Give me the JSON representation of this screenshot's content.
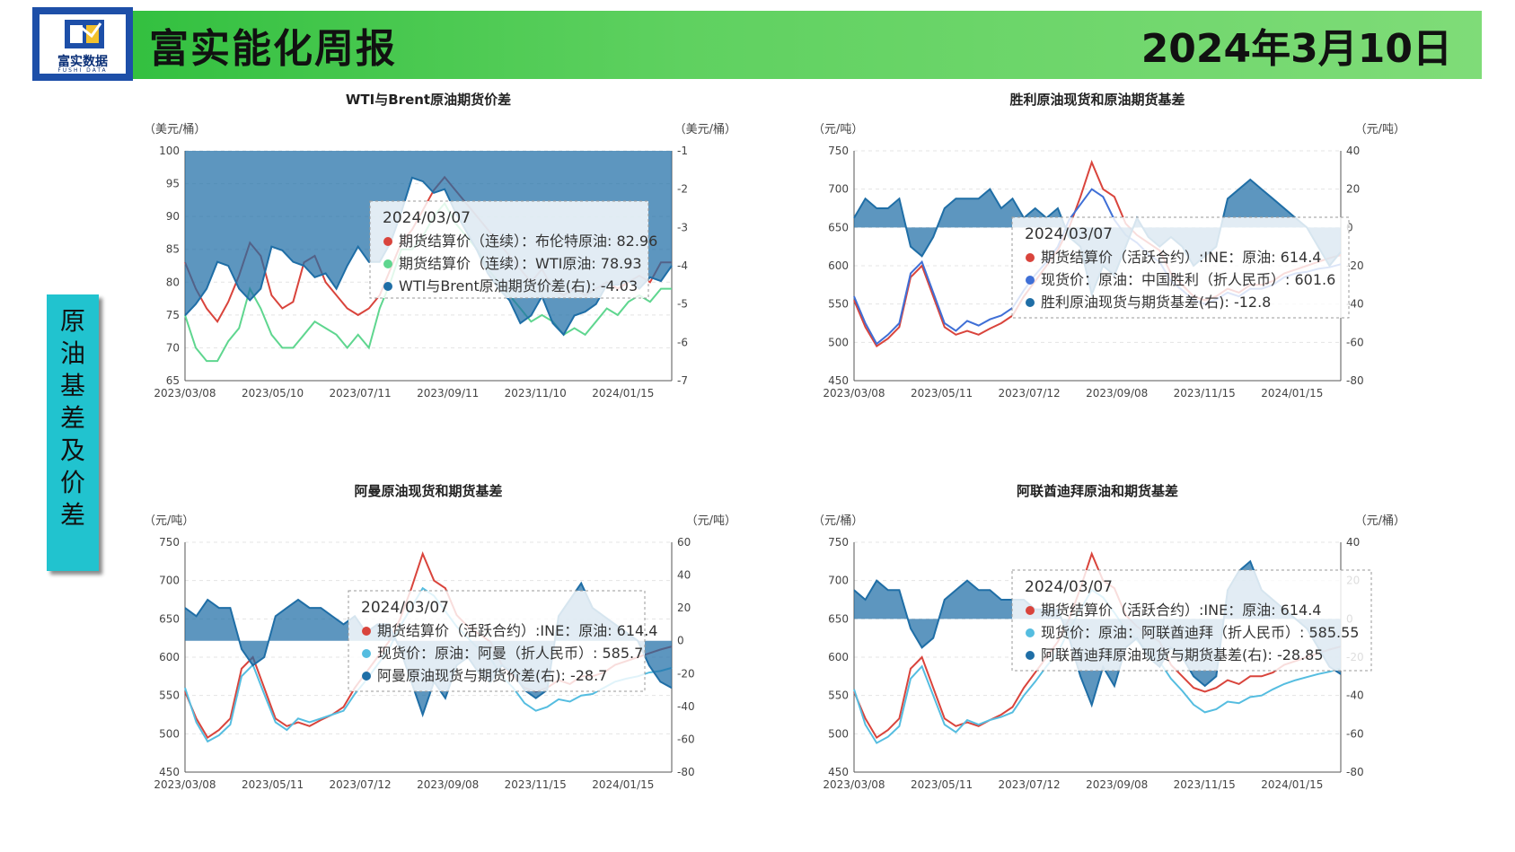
{
  "header": {
    "logo_text": "富实数据",
    "logo_sub": "FUSHI DATA",
    "title": "富实能化周报",
    "date": "2024年3月10日"
  },
  "sidebar": {
    "label": "原油基差及价差"
  },
  "colors": {
    "red": "#d9443c",
    "green": "#5fd68f",
    "dark_blue": "#1f6ea6",
    "area": "#1f6ea6",
    "blue": "#3f6fd6",
    "light_blue": "#55bde0"
  },
  "chart_data": [
    {
      "type": "line",
      "title": "WTI与Brent原油期货价差",
      "left_unit": "（美元/桶）",
      "right_unit": "（美元/桶）",
      "left_ylim": [
        65,
        100
      ],
      "left_ticks": [
        "100",
        "95",
        "90",
        "85",
        "80",
        "75",
        "70",
        "65"
      ],
      "right_ylim": [
        -7,
        -1
      ],
      "right_ticks": [
        "-1",
        "-2",
        "-3",
        "-4",
        "-5",
        "-6",
        "-7"
      ],
      "x_ticks": [
        "2023/03/08",
        "2023/05/10",
        "2023/07/11",
        "2023/09/11",
        "2023/11/10",
        "2024/01/15"
      ],
      "series": [
        {
          "name": "期货结算价（连续）：布伦特原油",
          "axis": "left",
          "color": "red",
          "values": [
            83,
            79,
            76,
            74,
            77,
            81,
            86,
            84,
            78,
            76,
            77,
            83,
            84,
            80,
            78,
            76,
            75,
            76,
            78,
            82,
            86,
            88,
            91,
            94,
            96,
            94,
            92,
            90,
            88,
            86,
            84,
            82,
            80,
            82,
            79,
            78,
            79,
            78,
            79,
            80,
            79,
            80,
            81,
            80,
            83,
            83
          ]
        },
        {
          "name": "期货结算价（连续）：WTI原油",
          "axis": "left",
          "color": "green",
          "values": [
            75,
            70,
            68,
            68,
            71,
            73,
            79,
            76,
            72,
            70,
            70,
            72,
            74,
            73,
            72,
            70,
            72,
            70,
            76,
            80,
            85,
            85,
            87,
            90,
            92,
            89,
            87,
            85,
            82,
            80,
            78,
            76,
            74,
            75,
            74,
            72,
            73,
            72,
            74,
            76,
            75,
            77,
            78,
            77,
            79,
            79
          ]
        },
        {
          "name": "WTI与Brent原油期货价差(右)",
          "axis": "right",
          "color": "area",
          "values": [
            -5.3,
            -5.0,
            -4.6,
            -3.9,
            -4.0,
            -4.6,
            -4.9,
            -4.6,
            -3.5,
            -3.6,
            -3.9,
            -4.0,
            -4.3,
            -4.2,
            -4.6,
            -4.0,
            -3.5,
            -3.9,
            -3.9,
            -3.4,
            -2.6,
            -1.7,
            -1.8,
            -2.1,
            -2.0,
            -2.6,
            -3.1,
            -3.6,
            -4.2,
            -4.6,
            -4.9,
            -5.5,
            -5.3,
            -4.8,
            -5.5,
            -5.8,
            -5.3,
            -5.2,
            -5.0,
            -4.5,
            -4.5,
            -4.4,
            -4.6,
            -4.3,
            -4.4,
            -4.0
          ]
        }
      ],
      "tooltip": {
        "date": "2024/03/07",
        "lines": [
          "期货结算价（连续）：布伦特原油: 82.96",
          "期货结算价（连续）：WTI原油: 78.93",
          "WTI与Brent原油期货价差(右): -4.03"
        ]
      }
    },
    {
      "type": "line",
      "title": "胜利原油现货和原油期货基差",
      "left_unit": "（元/吨）",
      "right_unit": "（元/吨）",
      "left_ylim": [
        450,
        750
      ],
      "left_ticks": [
        "750",
        "700",
        "650",
        "600",
        "550",
        "500",
        "450"
      ],
      "right_ylim": [
        -80,
        40
      ],
      "right_ticks": [
        "40",
        "20",
        "0",
        "-20",
        "-40",
        "-60",
        "-80"
      ],
      "x_ticks": [
        "2023/03/08",
        "2023/05/11",
        "2023/07/12",
        "2023/09/08",
        "2023/11/15",
        "2024/01/15"
      ],
      "series": [
        {
          "name": "期货结算价（活跃合约）:INE：原油",
          "axis": "left",
          "color": "red",
          "values": [
            555,
            520,
            495,
            505,
            520,
            585,
            600,
            560,
            520,
            510,
            515,
            510,
            518,
            525,
            535,
            560,
            580,
            600,
            620,
            650,
            690,
            735,
            700,
            690,
            655,
            640,
            630,
            620,
            590,
            575,
            560,
            555,
            560,
            570,
            565,
            575,
            575,
            580,
            590,
            595,
            600,
            605,
            610,
            614
          ]
        },
        {
          "name": "现货价：原油：中国胜利（折人民币）",
          "axis": "left",
          "color": "blue",
          "values": [
            560,
            525,
            498,
            510,
            525,
            590,
            605,
            565,
            525,
            515,
            528,
            522,
            530,
            535,
            545,
            568,
            588,
            605,
            625,
            660,
            680,
            700,
            690,
            660,
            640,
            630,
            615,
            605,
            580,
            568,
            555,
            550,
            556,
            565,
            560,
            570,
            570,
            575,
            585,
            590,
            592,
            596,
            598,
            602
          ]
        },
        {
          "name": "胜利原油现货与期货基差(右)",
          "axis": "right",
          "color": "area",
          "values": [
            5,
            15,
            10,
            10,
            15,
            -10,
            -15,
            -5,
            10,
            15,
            15,
            15,
            20,
            10,
            15,
            5,
            10,
            5,
            10,
            -5,
            -10,
            -35,
            -20,
            -25,
            -10,
            5,
            -5,
            -10,
            -5,
            -10,
            -20,
            -15,
            -10,
            15,
            20,
            25,
            20,
            15,
            10,
            5,
            0,
            -10,
            -20,
            -12.8
          ]
        }
      ],
      "tooltip": {
        "date": "2024/03/07",
        "lines": [
          "期货结算价（活跃合约）:INE：原油: 614.4",
          "现货价：原油：中国胜利（折人民币）: 601.6",
          "胜利原油现货与期货基差(右): -12.8"
        ]
      }
    },
    {
      "type": "line",
      "title": "阿曼原油现货和期货基差",
      "left_unit": "（元/吨）",
      "right_unit": "（元/吨）",
      "left_ylim": [
        450,
        750
      ],
      "left_ticks": [
        "750",
        "700",
        "650",
        "600",
        "550",
        "500",
        "450"
      ],
      "right_ylim": [
        -80,
        60
      ],
      "right_ticks": [
        "60",
        "40",
        "20",
        "0",
        "-20",
        "-40",
        "-60",
        "-80"
      ],
      "x_ticks": [
        "2023/03/08",
        "2023/05/11",
        "2023/07/12",
        "2023/09/08",
        "2023/11/15",
        "2024/01/15"
      ],
      "series": [
        {
          "name": "期货结算价（活跃合约）:INE：原油",
          "axis": "left",
          "color": "red",
          "values": [
            555,
            520,
            495,
            505,
            520,
            585,
            600,
            560,
            520,
            510,
            515,
            510,
            518,
            525,
            535,
            560,
            580,
            600,
            620,
            650,
            690,
            735,
            700,
            690,
            655,
            640,
            630,
            620,
            590,
            575,
            560,
            555,
            560,
            570,
            565,
            575,
            575,
            580,
            590,
            595,
            600,
            605,
            610,
            614
          ]
        },
        {
          "name": "现货价：原油：阿曼（折人民币）",
          "axis": "left",
          "color": "light_blue",
          "values": [
            560,
            515,
            490,
            498,
            512,
            575,
            590,
            552,
            515,
            505,
            520,
            515,
            520,
            525,
            530,
            552,
            570,
            590,
            610,
            640,
            665,
            690,
            680,
            660,
            640,
            625,
            610,
            598,
            575,
            560,
            540,
            530,
            535,
            545,
            542,
            550,
            552,
            560,
            568,
            572,
            575,
            580,
            582,
            586
          ]
        },
        {
          "name": "阿曼原油现货与期货价差(右)",
          "axis": "right",
          "color": "area",
          "values": [
            20,
            15,
            25,
            20,
            20,
            -5,
            -15,
            -10,
            15,
            20,
            25,
            20,
            20,
            15,
            10,
            15,
            5,
            10,
            10,
            -5,
            -25,
            -45,
            -25,
            -35,
            -15,
            -10,
            -20,
            -25,
            -15,
            -20,
            -30,
            -35,
            -30,
            15,
            25,
            35,
            20,
            15,
            10,
            5,
            0,
            -15,
            -25,
            -28.7
          ]
        }
      ],
      "tooltip": {
        "date": "2024/03/07",
        "lines": [
          "期货结算价（活跃合约）:INE：原油: 614.4",
          "现货价：原油：阿曼（折人民币）: 585.7",
          "阿曼原油现货与期货价差(右): -28.7"
        ]
      }
    },
    {
      "type": "line",
      "title": "阿联酋迪拜原油和期货基差",
      "left_unit": "（元/桶）",
      "right_unit": "（元/桶）",
      "left_ylim": [
        450,
        750
      ],
      "left_ticks": [
        "750",
        "700",
        "650",
        "600",
        "550",
        "500",
        "450"
      ],
      "right_ylim": [
        -80,
        40
      ],
      "right_ticks": [
        "40",
        "20",
        "0",
        "-20",
        "-40",
        "-60",
        "-80"
      ],
      "x_ticks": [
        "2023/03/08",
        "2023/05/11",
        "2023/07/12",
        "2023/09/08",
        "2023/11/15",
        "2024/01/15"
      ],
      "series": [
        {
          "name": "期货结算价（活跃合约）:INE：原油",
          "axis": "left",
          "color": "red",
          "values": [
            555,
            520,
            495,
            505,
            520,
            585,
            600,
            560,
            520,
            510,
            515,
            510,
            518,
            525,
            535,
            560,
            580,
            600,
            620,
            650,
            690,
            735,
            700,
            690,
            655,
            640,
            630,
            620,
            590,
            575,
            560,
            555,
            560,
            570,
            565,
            575,
            575,
            580,
            590,
            595,
            600,
            605,
            610,
            614
          ]
        },
        {
          "name": "现货价：原油：阿联酋迪拜（折人民币）",
          "axis": "left",
          "color": "light_blue",
          "values": [
            558,
            512,
            488,
            496,
            510,
            572,
            588,
            550,
            512,
            502,
            518,
            512,
            518,
            522,
            528,
            550,
            568,
            588,
            606,
            636,
            662,
            688,
            678,
            658,
            636,
            622,
            606,
            594,
            572,
            556,
            538,
            528,
            532,
            542,
            540,
            548,
            550,
            558,
            565,
            570,
            574,
            578,
            581,
            585.55
          ]
        },
        {
          "name": "阿联酋迪拜原油现货与期货基差(右)",
          "axis": "right",
          "color": "area",
          "values": [
            15,
            10,
            20,
            15,
            15,
            -5,
            -15,
            -10,
            10,
            15,
            20,
            15,
            15,
            10,
            10,
            10,
            5,
            5,
            5,
            -10,
            -30,
            -45,
            -25,
            -35,
            -15,
            -10,
            -20,
            -25,
            -15,
            -20,
            -30,
            -35,
            -30,
            15,
            25,
            30,
            15,
            10,
            5,
            0,
            -5,
            -15,
            -25,
            -28.85
          ]
        }
      ],
      "tooltip": {
        "date": "2024/03/07",
        "lines": [
          "期货结算价（活跃合约）:INE：原油: 614.4",
          "现货价：原油：阿联酋迪拜（折人民币）: 585.55",
          "阿联酋迪拜原油现货与期货基差(右): -28.85"
        ]
      }
    }
  ]
}
